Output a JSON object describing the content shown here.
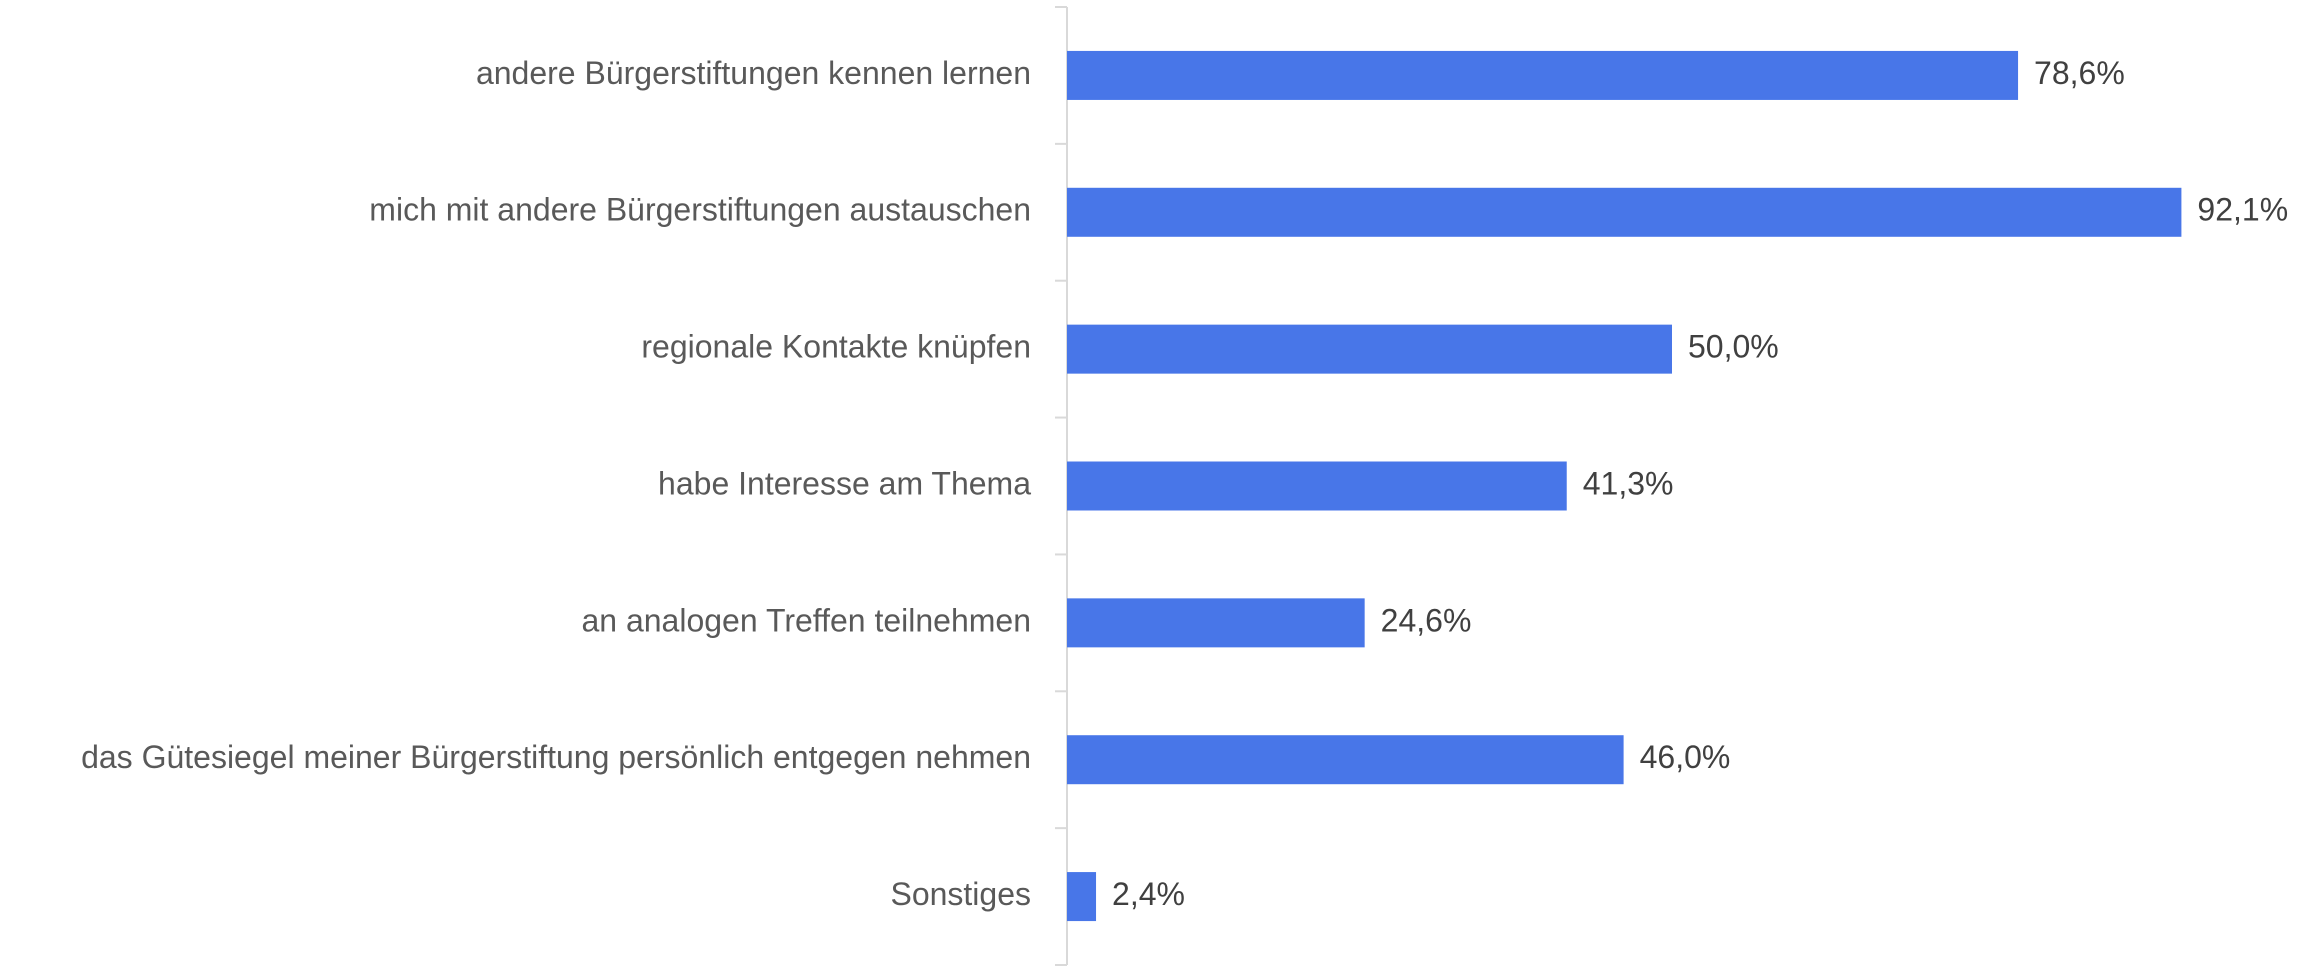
{
  "chart_data": {
    "type": "hbar",
    "categories": [
      "andere Bürgerstiftungen kennen lernen",
      "mich mit andere Bürgerstiftungen austauschen",
      "regionale Kontakte knüpfen",
      "habe Interesse am Thema",
      "an analogen Treffen teilnehmen",
      "das Gütesiegel meiner Bürgerstiftung persönlich entgegen nehmen",
      "Sonstiges"
    ],
    "values": [
      78.6,
      92.1,
      50.0,
      41.3,
      24.6,
      46.0,
      2.4
    ],
    "value_labels": [
      "78,6%",
      "92,1%",
      "50,0%",
      "41,3%",
      "24,6%",
      "46,0%",
      "2,4%"
    ],
    "color": "#4876e8",
    "xlim": [
      0,
      100
    ]
  }
}
